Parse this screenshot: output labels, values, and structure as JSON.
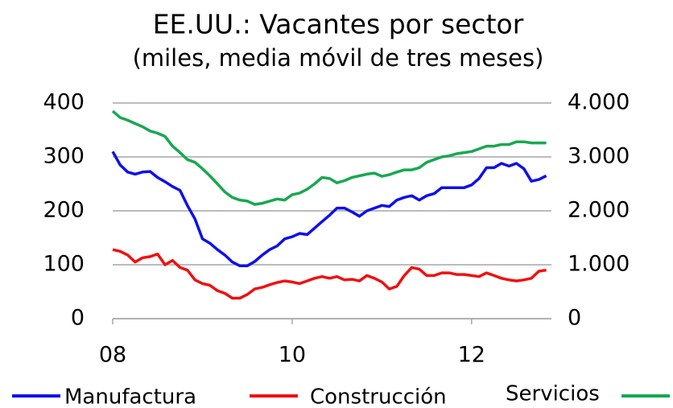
{
  "chart_data": {
    "type": "line",
    "title": "EE.UU.: Vacantes por sector",
    "subtitle": "(miles, media móvil de tres meses)",
    "x": [
      8,
      8.083,
      8.167,
      8.25,
      8.333,
      8.417,
      8.5,
      8.583,
      8.667,
      8.75,
      8.833,
      8.917,
      9,
      9.083,
      9.167,
      9.25,
      9.333,
      9.417,
      9.5,
      9.583,
      9.667,
      9.75,
      9.833,
      9.917,
      10,
      10.083,
      10.167,
      10.25,
      10.333,
      10.417,
      10.5,
      10.583,
      10.667,
      10.75,
      10.833,
      10.917,
      11,
      11.083,
      11.167,
      11.25,
      11.333,
      11.417,
      11.5,
      11.583,
      11.667,
      11.75,
      11.833,
      11.917,
      12,
      12.083,
      12.167,
      12.25,
      12.333,
      12.417,
      12.5,
      12.583,
      12.667,
      12.75,
      12.833
    ],
    "series": [
      {
        "name": "Manufactura",
        "color": "#1010e8",
        "values": [
          310,
          285,
          272,
          268,
          272,
          273,
          262,
          254,
          245,
          238,
          210,
          185,
          148,
          140,
          128,
          118,
          105,
          98,
          98,
          106,
          118,
          128,
          135,
          148,
          152,
          158,
          156,
          168,
          180,
          192,
          205,
          205,
          198,
          190,
          200,
          205,
          210,
          208,
          220,
          225,
          228,
          220,
          228,
          232,
          243,
          243,
          243,
          243,
          248,
          260,
          280,
          280,
          288,
          283,
          288,
          278,
          255,
          258,
          265
        ]
      },
      {
        "name": "Construcción",
        "color": "#f01010",
        "values": [
          128,
          125,
          118,
          105,
          113,
          115,
          120,
          100,
          108,
          95,
          90,
          72,
          65,
          62,
          52,
          47,
          38,
          38,
          45,
          55,
          58,
          63,
          67,
          70,
          68,
          65,
          70,
          75,
          78,
          75,
          78,
          72,
          73,
          70,
          80,
          75,
          68,
          55,
          60,
          80,
          95,
          92,
          80,
          80,
          85,
          85,
          82,
          82,
          80,
          78,
          85,
          80,
          75,
          72,
          70,
          72,
          75,
          88,
          90
        ]
      },
      {
        "name": "Servicios",
        "color": "#18a850",
        "axis": "y2",
        "values": [
          3850,
          3730,
          3680,
          3620,
          3560,
          3480,
          3440,
          3380,
          3200,
          3080,
          2950,
          2900,
          2780,
          2650,
          2500,
          2350,
          2250,
          2200,
          2180,
          2120,
          2140,
          2180,
          2220,
          2200,
          2300,
          2330,
          2400,
          2500,
          2620,
          2600,
          2520,
          2560,
          2620,
          2650,
          2680,
          2700,
          2640,
          2670,
          2720,
          2760,
          2760,
          2800,
          2900,
          2950,
          3000,
          3020,
          3060,
          3080,
          3100,
          3150,
          3200,
          3200,
          3230,
          3230,
          3280,
          3280,
          3260,
          3260,
          3260
        ]
      }
    ],
    "xlim": [
      8,
      12.89
    ],
    "xticks": [
      {
        "value": 8,
        "label": "08"
      },
      10,
      12
    ],
    "ylim": [
      0,
      400
    ],
    "yticks": [
      0,
      100,
      200,
      300,
      400
    ],
    "y2lim": [
      0,
      4000
    ],
    "y2ticks": [
      0,
      {
        "value": 1000,
        "label": "1.000"
      },
      {
        "value": 2000,
        "label": "2.000"
      },
      {
        "value": 3000,
        "label": "3.000"
      },
      {
        "value": 4000,
        "label": "4.000"
      }
    ],
    "grid": true
  }
}
